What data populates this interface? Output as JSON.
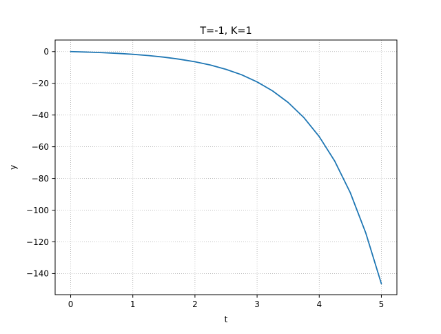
{
  "chart_data": {
    "type": "line",
    "title": "T=-1, K=1",
    "xlabel": "t",
    "ylabel": "y",
    "xlim": [
      -0.25,
      5.25
    ],
    "ylim": [
      -153.3,
      7.3
    ],
    "xticks": [
      0,
      1,
      2,
      3,
      4,
      5
    ],
    "yticks": [
      0,
      -20,
      -40,
      -60,
      -80,
      -100,
      -120,
      -140
    ],
    "xtick_labels": [
      "0",
      "1",
      "2",
      "3",
      "4",
      "5"
    ],
    "ytick_labels": [
      "0",
      "−20",
      "−40",
      "−60",
      "−80",
      "−100",
      "−120",
      "−140"
    ],
    "grid": true,
    "grid_style": "dotted",
    "series": [
      {
        "color": "#1f77b4",
        "x": [
          0,
          0.25,
          0.5,
          0.75,
          1.0,
          1.25,
          1.5,
          1.75,
          2.0,
          2.25,
          2.5,
          2.75,
          3.0,
          3.25,
          3.5,
          3.75,
          4.0,
          4.25,
          4.5,
          4.75,
          5.0
        ],
        "y": [
          0,
          -0.3,
          -0.65,
          -1.1,
          -1.7,
          -2.5,
          -3.5,
          -4.8,
          -6.4,
          -8.5,
          -11.2,
          -14.6,
          -19.1,
          -24.8,
          -32.1,
          -41.5,
          -53.6,
          -69.1,
          -89.0,
          -114.5,
          -146.4
        ]
      }
    ]
  }
}
